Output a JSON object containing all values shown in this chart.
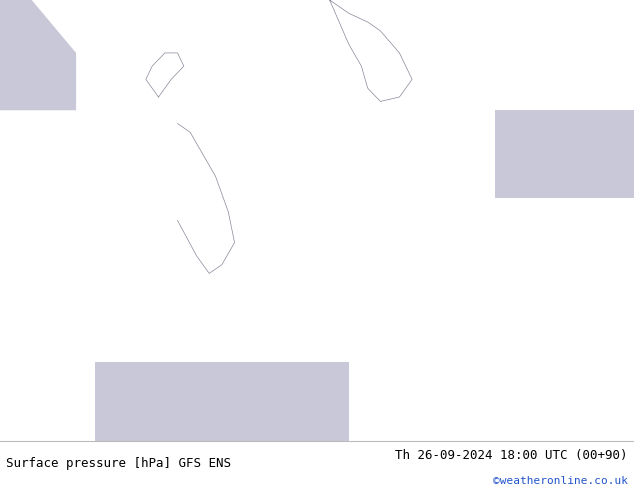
{
  "title_left": "Surface pressure [hPa] GFS ENS",
  "title_right": "Th 26-09-2024 18:00 UTC (00+90)",
  "watermark": "©weatheronline.co.uk",
  "bg_land": "#c8f0c8",
  "bg_sea": "#c8c8d8",
  "contour_blue_color": "#3355dd",
  "contour_red_color": "#cc2222",
  "contour_black_color": "#000000",
  "label_fontsize": 6.5,
  "footer_fontsize": 9
}
